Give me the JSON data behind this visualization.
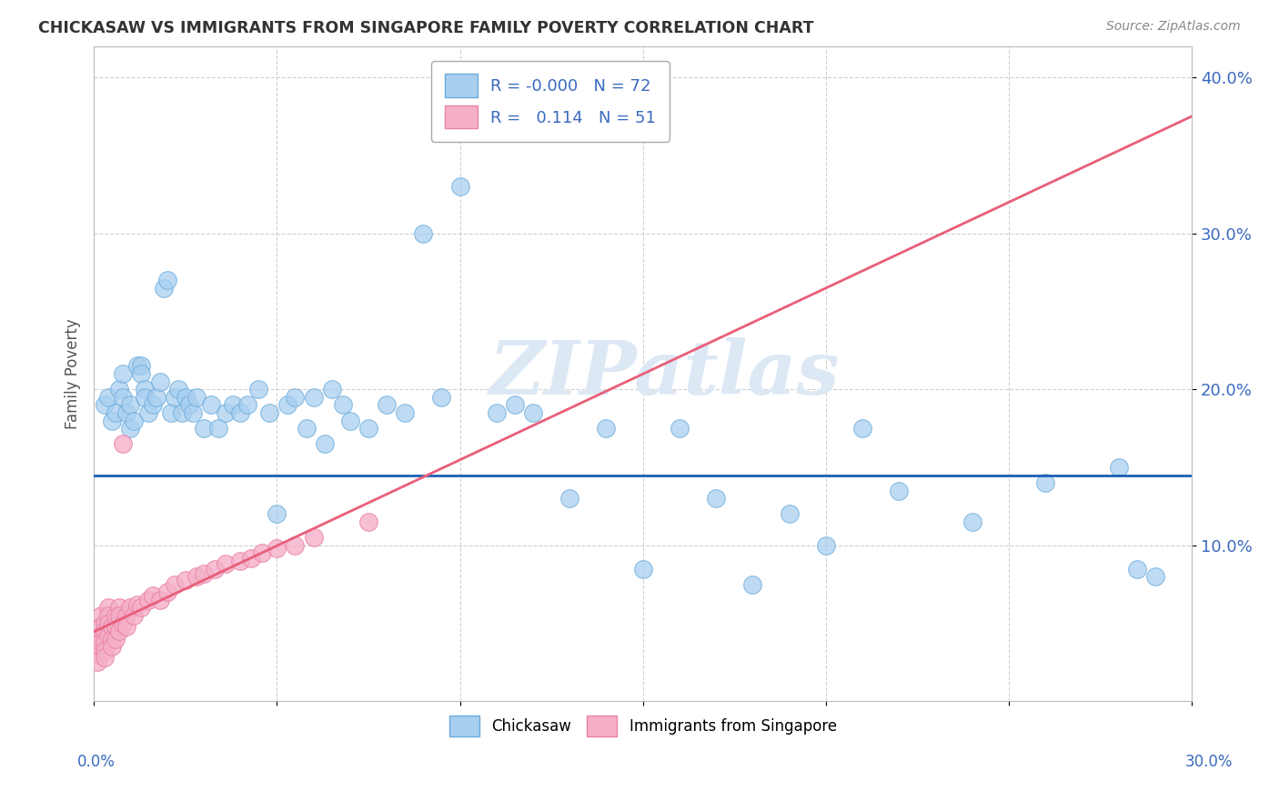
{
  "title": "CHICKASAW VS IMMIGRANTS FROM SINGAPORE FAMILY POVERTY CORRELATION CHART",
  "source": "Source: ZipAtlas.com",
  "ylabel": "Family Poverty",
  "xlim": [
    0.0,
    0.3
  ],
  "ylim": [
    0.0,
    0.42
  ],
  "r_chickasaw": "-0.000",
  "n_chickasaw": "72",
  "r_singapore": "0.114",
  "n_singapore": "51",
  "blue_scatter_color": "#a8cff0",
  "blue_scatter_edge": "#6aabdb",
  "pink_scatter_color": "#f5b0c8",
  "pink_scatter_edge": "#e880a8",
  "blue_line_color": "#1a5fb4",
  "pink_line_color": "#e8607a",
  "watermark_color": "#dde8f5",
  "blue_hline": 0.145,
  "chickasaw_x": [
    0.003,
    0.004,
    0.005,
    0.006,
    0.007,
    0.008,
    0.008,
    0.009,
    0.01,
    0.01,
    0.011,
    0.012,
    0.013,
    0.013,
    0.014,
    0.014,
    0.015,
    0.016,
    0.017,
    0.018,
    0.019,
    0.02,
    0.021,
    0.022,
    0.023,
    0.024,
    0.025,
    0.026,
    0.027,
    0.028,
    0.03,
    0.032,
    0.034,
    0.036,
    0.038,
    0.04,
    0.042,
    0.045,
    0.048,
    0.05,
    0.053,
    0.055,
    0.058,
    0.06,
    0.063,
    0.065,
    0.068,
    0.07,
    0.075,
    0.08,
    0.085,
    0.09,
    0.095,
    0.1,
    0.11,
    0.115,
    0.12,
    0.13,
    0.14,
    0.15,
    0.16,
    0.17,
    0.18,
    0.19,
    0.2,
    0.21,
    0.22,
    0.24,
    0.26,
    0.28,
    0.285,
    0.29
  ],
  "chickasaw_y": [
    0.19,
    0.195,
    0.18,
    0.185,
    0.2,
    0.21,
    0.195,
    0.185,
    0.19,
    0.175,
    0.18,
    0.215,
    0.215,
    0.21,
    0.2,
    0.195,
    0.185,
    0.19,
    0.195,
    0.205,
    0.265,
    0.27,
    0.185,
    0.195,
    0.2,
    0.185,
    0.195,
    0.19,
    0.185,
    0.195,
    0.175,
    0.19,
    0.175,
    0.185,
    0.19,
    0.185,
    0.19,
    0.2,
    0.185,
    0.12,
    0.19,
    0.195,
    0.175,
    0.195,
    0.165,
    0.2,
    0.19,
    0.18,
    0.175,
    0.19,
    0.185,
    0.3,
    0.195,
    0.33,
    0.185,
    0.19,
    0.185,
    0.13,
    0.175,
    0.085,
    0.175,
    0.13,
    0.075,
    0.12,
    0.1,
    0.175,
    0.135,
    0.115,
    0.14,
    0.15,
    0.085,
    0.08
  ],
  "singapore_x": [
    0.001,
    0.001,
    0.001,
    0.001,
    0.002,
    0.002,
    0.002,
    0.002,
    0.003,
    0.003,
    0.003,
    0.003,
    0.003,
    0.004,
    0.004,
    0.004,
    0.004,
    0.005,
    0.005,
    0.005,
    0.006,
    0.006,
    0.006,
    0.007,
    0.007,
    0.007,
    0.008,
    0.008,
    0.009,
    0.009,
    0.01,
    0.011,
    0.012,
    0.013,
    0.015,
    0.016,
    0.018,
    0.02,
    0.022,
    0.025,
    0.028,
    0.03,
    0.033,
    0.036,
    0.04,
    0.043,
    0.046,
    0.05,
    0.055,
    0.06,
    0.075
  ],
  "singapore_y": [
    0.04,
    0.035,
    0.03,
    0.025,
    0.055,
    0.048,
    0.042,
    0.038,
    0.05,
    0.045,
    0.038,
    0.032,
    0.028,
    0.06,
    0.055,
    0.05,
    0.042,
    0.048,
    0.04,
    0.035,
    0.055,
    0.048,
    0.04,
    0.06,
    0.055,
    0.045,
    0.165,
    0.05,
    0.055,
    0.048,
    0.06,
    0.055,
    0.062,
    0.06,
    0.065,
    0.068,
    0.065,
    0.07,
    0.075,
    0.078,
    0.08,
    0.082,
    0.085,
    0.088,
    0.09,
    0.092,
    0.095,
    0.098,
    0.1,
    0.105,
    0.115
  ]
}
